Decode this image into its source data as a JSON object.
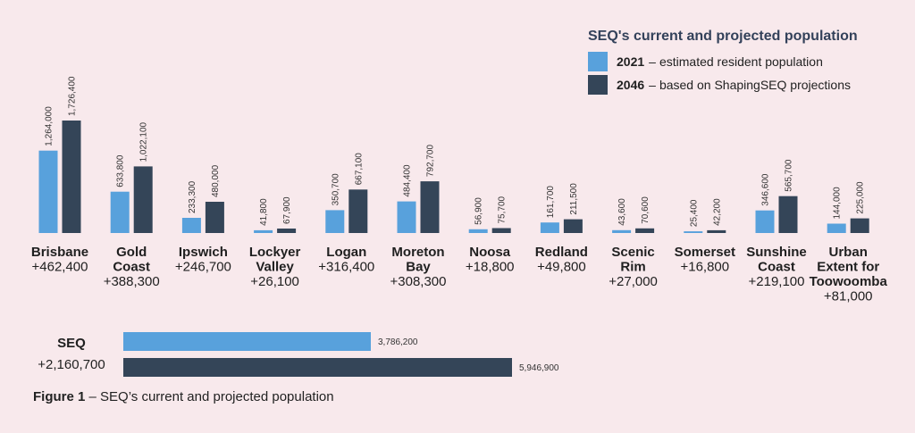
{
  "legend": {
    "title": "SEQ's current and projected population",
    "items": [
      {
        "key": "2021",
        "sep": " – ",
        "desc": "estimated resident population",
        "color": "#58a1dc"
      },
      {
        "key": "2046",
        "sep": " – ",
        "desc": "based on ShapingSEQ projections",
        "color": "#344558"
      }
    ]
  },
  "caption": {
    "bold": "Figure 1",
    "rest": " – SEQ’s current and projected population"
  },
  "chart_data": [
    {
      "type": "bar",
      "orientation": "vertical",
      "categories": [
        [
          "Brisbane"
        ],
        [
          "Gold",
          "Coast"
        ],
        [
          "Ipswich"
        ],
        [
          "Lockyer",
          "Valley"
        ],
        [
          "Logan"
        ],
        [
          "Moreton",
          "Bay"
        ],
        [
          "Noosa"
        ],
        [
          "Redland"
        ],
        [
          "Scenic",
          "Rim"
        ],
        [
          "Somerset"
        ],
        [
          "Sunshine",
          "Coast"
        ],
        [
          "Urban",
          "Extent for",
          "Toowoomba"
        ]
      ],
      "changes": [
        "+462,400",
        "+388,300",
        "+246,700",
        "+26,100",
        "+316,400",
        "+308,300",
        "+18,800",
        "+49,800",
        "+27,000",
        "+16,800",
        "+219,100",
        "+81,000"
      ],
      "series": [
        {
          "name": "2021",
          "color": "#58a1dc",
          "values": [
            1264000,
            633800,
            233300,
            41800,
            350700,
            484400,
            56900,
            161700,
            43600,
            25400,
            346600,
            144000
          ],
          "labels": [
            "1,264,000",
            "633,800",
            "233,300",
            "41,800",
            "350,700",
            "484,400",
            "56,900",
            "161,700",
            "43,600",
            "25,400",
            "346,600",
            "144,000"
          ]
        },
        {
          "name": "2046",
          "color": "#344558",
          "values": [
            1726400,
            1022100,
            480000,
            67900,
            667100,
            792700,
            75700,
            211500,
            70600,
            42200,
            565700,
            225000
          ],
          "labels": [
            "1,726,400",
            "1,022,100",
            "480,000",
            "67,900",
            "667,100",
            "792,700",
            "75,700",
            "211,500",
            "70,600",
            "42,200",
            "565,700",
            "225,000"
          ]
        }
      ]
    },
    {
      "type": "bar",
      "orientation": "horizontal",
      "category": "SEQ",
      "change": "+2,160,700",
      "series": [
        {
          "name": "2021",
          "color": "#58a1dc",
          "value": 3786200,
          "label": "3,786,200"
        },
        {
          "name": "2046",
          "color": "#344558",
          "value": 5946900,
          "label": "5,946,900"
        }
      ]
    }
  ]
}
